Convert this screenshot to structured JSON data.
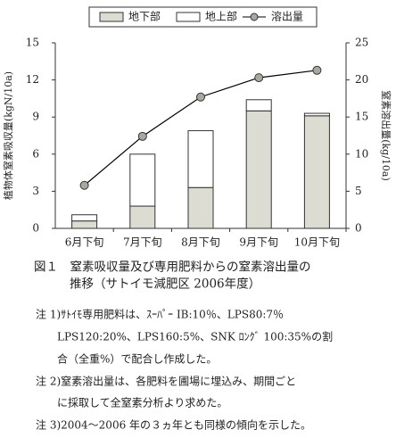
{
  "chart_data": {
    "type": "bar",
    "categories": [
      "6月下旬",
      "7月下旬",
      "8月下旬",
      "9月下旬",
      "10月下旬"
    ],
    "stacked": true,
    "series": [
      {
        "name": "地下部",
        "color": "#dcdcd2",
        "values": [
          0.6,
          1.8,
          3.3,
          9.5,
          9.1
        ]
      },
      {
        "name": "地上部",
        "color": "#ffffff",
        "values": [
          0.5,
          4.2,
          4.6,
          0.9,
          0.2
        ]
      },
      {
        "name": "溶出量",
        "type": "line",
        "axis": "y2",
        "color": "#000000",
        "marker_color": "#a8a8a0",
        "values": [
          5.8,
          12.4,
          17.7,
          20.3,
          21.3
        ]
      }
    ],
    "ylabel": "植物体窒素吸収量(kgN/10a)",
    "y2label": "窒素溶出量(kg/10a)",
    "ylim": [
      0,
      15
    ],
    "yticks": [
      0,
      3,
      6,
      9,
      12,
      15
    ],
    "y2lim": [
      0,
      25
    ],
    "y2ticks": [
      0,
      5,
      10,
      15,
      20,
      25
    ],
    "grid": false,
    "legend": "top"
  },
  "caption": [
    "図１　窒素吸収量及び専用肥料からの窒素溶出量の",
    "推移（サトイモ減肥区 2006年度）"
  ],
  "notes": [
    "注 1)ｻﾄｲﾓ専用肥料は、ｽｰﾊﾟｰ IB:10％、LPS80:7％",
    "LPS120:20%、LPS160:5%、SNK ﾛﾝｸﾞ 100:35%の割",
    "合（全重%）で配合し作成した。",
    "注 2)窒素溶出量は、各肥料を圃場に埋込み、期間ごと",
    "に採取して全窒素分析より求めた。",
    "注 3)2004～2006 年の３ヵ年とも同様の傾向を示した。"
  ]
}
